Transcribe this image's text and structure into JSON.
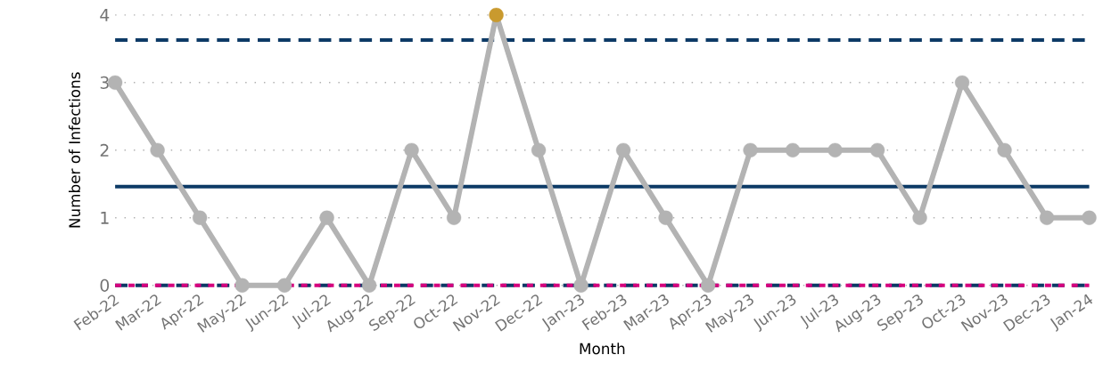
{
  "chart_data": {
    "type": "line",
    "xlabel": "Month",
    "ylabel": "Number of Infections",
    "categories": [
      "Feb-22",
      "Mar-22",
      "Apr-22",
      "May-22",
      "Jun-22",
      "Jul-22",
      "Aug-22",
      "Sep-22",
      "Oct-22",
      "Nov-22",
      "Dec-22",
      "Jan-23",
      "Feb-23",
      "Mar-23",
      "Apr-23",
      "May-23",
      "Jun-23",
      "Jul-23",
      "Aug-23",
      "Sep-23",
      "Oct-23",
      "Nov-23",
      "Dec-23",
      "Jan-24"
    ],
    "series": [
      {
        "color": "#b3b3b3",
        "values": [
          3,
          2,
          1,
          0,
          0,
          1,
          0,
          2,
          1,
          4,
          2,
          0,
          2,
          1,
          0,
          2,
          2,
          2,
          2,
          1,
          3,
          2,
          1,
          1
        ],
        "colors": [
          "#b3b3b3",
          "#b3b3b3",
          "#b3b3b3",
          "#b3b3b3",
          "#b3b3b3",
          "#b3b3b3",
          "#b3b3b3",
          "#b3b3b3",
          "#b3b3b3",
          "#c99a2e",
          "#b3b3b3",
          "#b3b3b3",
          "#b3b3b3",
          "#b3b3b3",
          "#b3b3b3",
          "#b3b3b3",
          "#b3b3b3",
          "#b3b3b3",
          "#b3b3b3",
          "#b3b3b3",
          "#b3b3b3",
          "#b3b3b3",
          "#b3b3b3",
          "#b3b3b3"
        ]
      }
    ],
    "ylim": [
      0,
      4
    ],
    "yticks": [
      0,
      1,
      2,
      3,
      4
    ],
    "grid": "y",
    "marker": "circle",
    "line_style": "solid",
    "ref_lines": [
      {
        "axis": "y",
        "value": 3.63,
        "color": "#0d3a66",
        "line_style": "dashed"
      },
      {
        "axis": "y",
        "value": 1.46,
        "color": "#0d3a66",
        "line_style": "solid"
      },
      {
        "axis": "y",
        "value": 0,
        "color": "#0d3a66",
        "line_style": "dashed"
      },
      {
        "axis": "y",
        "value": 0,
        "color": "#d6007e",
        "line_style": "dotted"
      }
    ]
  }
}
